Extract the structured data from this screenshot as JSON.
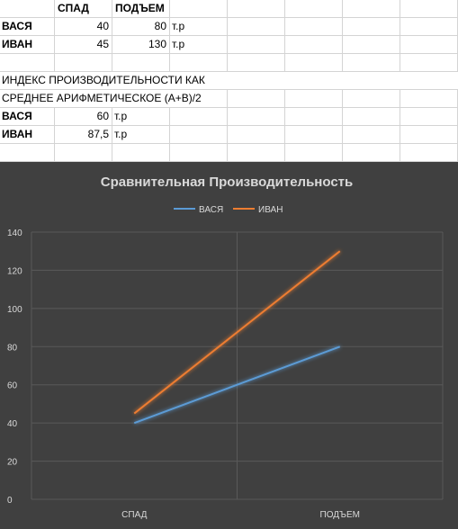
{
  "sheet": {
    "headers": {
      "c": "СПАД",
      "d": "ПОДЪЕМ"
    },
    "rows": [
      {
        "name": "ВАСЯ",
        "spad": "40",
        "podem": "80",
        "unit": "т.р"
      },
      {
        "name": "ИВАН",
        "spad": "45",
        "podem": "130",
        "unit": "т.р"
      }
    ],
    "index_line1": "ИНДЕКС ПРОИЗВОДИТЕЛЬНОСТИ КАК",
    "index_line2": "СРЕДНЕЕ АРИФМЕТИЧЕСКОЕ (A+B)/2",
    "averages": [
      {
        "name": "ВАСЯ",
        "value": "60",
        "unit": "т.р"
      },
      {
        "name": "ИВАН",
        "value": "87,5",
        "unit": "т.р"
      }
    ]
  },
  "chart_data": {
    "type": "line",
    "title": "Сравнительная Производительность",
    "categories": [
      "СПАД",
      "ПОДЪЕМ"
    ],
    "series": [
      {
        "name": "ВАСЯ",
        "values": [
          40,
          80
        ],
        "color": "#5b9bd5"
      },
      {
        "name": "ИВАН",
        "values": [
          45,
          130
        ],
        "color": "#ed7d31"
      }
    ],
    "ylim": [
      0,
      140
    ],
    "yticks": [
      0,
      20,
      40,
      60,
      80,
      100,
      120,
      140
    ],
    "legend": "top",
    "grid": true,
    "background": "#404040"
  }
}
